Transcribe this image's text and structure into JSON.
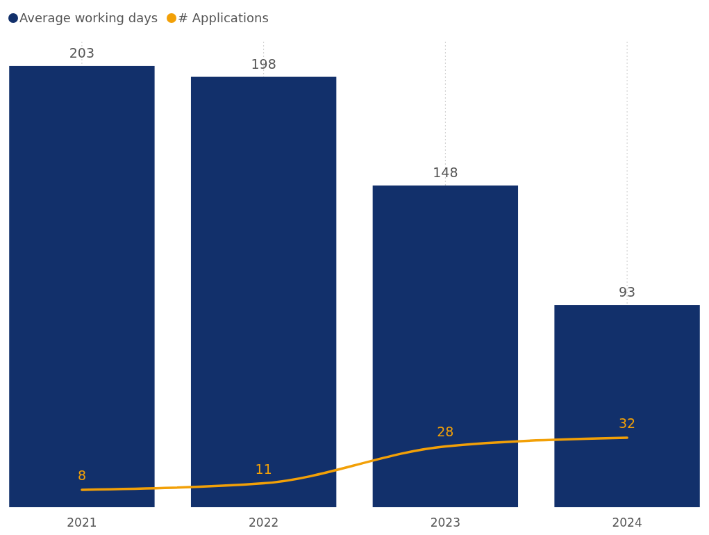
{
  "chart_data": {
    "type": "bar",
    "categories": [
      "2021",
      "2022",
      "2023",
      "2024"
    ],
    "series": [
      {
        "name": "Average working days",
        "color": "#12306b",
        "values": [
          203,
          198,
          148,
          93
        ]
      },
      {
        "name": "# Applications",
        "type": "line",
        "color": "#f2a007",
        "values": [
          8,
          11,
          28,
          32
        ]
      }
    ],
    "data_labels": true,
    "grid": "x",
    "legend": "top left",
    "marker": "none",
    "line_style": "solid"
  }
}
